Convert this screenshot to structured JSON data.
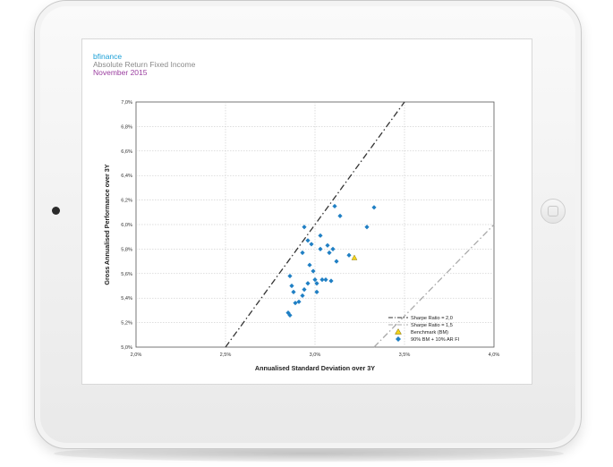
{
  "header": {
    "brand": "bfinance",
    "subtitle": "Absolute Return Fixed Income",
    "date": "November 2015"
  },
  "colors": {
    "brand": "#1a9fd6",
    "subtitle": "#8a8a8a",
    "date": "#9b3fa0",
    "points": "#1f7fc4",
    "benchmark": "#f2d21a",
    "sharpe_2": "#333333",
    "sharpe_1_5": "#aaaaaa"
  },
  "chart_data": {
    "type": "scatter",
    "xlabel": "Annualised Standard Deviation over 3Y",
    "ylabel": "Gross Annualised Performance over 3Y",
    "xlim": [
      2.0,
      4.0
    ],
    "ylim": [
      5.0,
      7.0
    ],
    "x_ticks": [
      2.0,
      2.5,
      3.0,
      3.5,
      4.0
    ],
    "x_tick_labels": [
      "2,0%",
      "2,5%",
      "3,0%",
      "3,5%",
      "4,0%"
    ],
    "y_ticks": [
      5.0,
      5.2,
      5.4,
      5.6,
      5.8,
      6.0,
      6.2,
      6.4,
      6.6,
      6.8,
      7.0
    ],
    "y_tick_labels": [
      "5,0%",
      "5,2%",
      "5,4%",
      "5,6%",
      "5,8%",
      "6,0%",
      "6,2%",
      "6,4%",
      "6,6%",
      "6,8%",
      "7,0%"
    ],
    "grid": true,
    "legend_position": "bottom-right",
    "lines": [
      {
        "name": "Sharpe Ratio = 2,0",
        "x": [
          2.5,
          3.5
        ],
        "y": [
          5.0,
          7.0
        ],
        "style": "dash-dot",
        "color": "#333333"
      },
      {
        "name": "Sharpe Ratio = 1,5",
        "x": [
          3.33,
          4.0
        ],
        "y": [
          5.0,
          6.0
        ],
        "style": "dash-dot",
        "color": "#aaaaaa"
      }
    ],
    "benchmark": {
      "name": "Benchmark (BM)",
      "x": 3.22,
      "y": 5.73
    },
    "series": [
      {
        "name": "90% BM + 10% AR FI",
        "x": [
          3.11,
          3.14,
          3.33,
          3.29,
          2.94,
          2.96,
          2.98,
          3.03,
          3.07,
          3.1,
          3.12,
          3.03,
          2.93,
          3.08,
          3.19,
          2.97,
          2.99,
          3.0,
          2.86,
          2.87,
          2.94,
          3.01,
          3.04,
          2.96,
          3.06,
          3.09,
          2.88,
          2.93,
          2.91,
          3.01,
          2.89,
          2.85,
          2.86
        ],
        "y": [
          6.15,
          6.07,
          6.14,
          5.98,
          5.98,
          5.87,
          5.84,
          5.91,
          5.83,
          5.8,
          5.7,
          5.8,
          5.77,
          5.77,
          5.75,
          5.67,
          5.62,
          5.55,
          5.58,
          5.5,
          5.47,
          5.52,
          5.55,
          5.52,
          5.55,
          5.54,
          5.45,
          5.42,
          5.37,
          5.45,
          5.36,
          5.28,
          5.26
        ]
      }
    ]
  }
}
